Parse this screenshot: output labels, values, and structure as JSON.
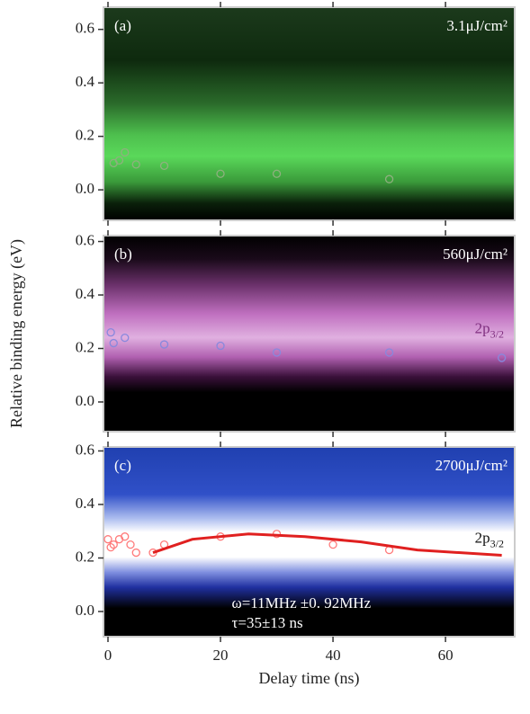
{
  "chart_data": [
    {
      "type": "scatter",
      "label": "(a)",
      "fluence": "3.1μJ/cm²",
      "xlim": [
        -0.8,
        72.3
      ],
      "xticks": [
        0,
        20,
        40,
        60
      ],
      "ylim": [
        -0.114,
        0.683
      ],
      "yticks": [
        {
          "value": 0,
          "label": "0.0"
        },
        0.2,
        0.4,
        0.6
      ],
      "series": [
        {
          "color": "#8fb07f",
          "x": [
            1,
            2,
            3,
            5,
            10,
            20,
            30,
            50
          ],
          "values": [
            0.1,
            0.11,
            0.14,
            0.095,
            0.09,
            0.06,
            0.06,
            0.04
          ]
        }
      ]
    },
    {
      "type": "scatter",
      "label": "(b)",
      "fluence": "560μJ/cm²",
      "state": {
        "text": "2p",
        "sub": "3/2"
      },
      "ylabel": "Relative binding energy (eV)",
      "xlim": [
        -0.8,
        72.3
      ],
      "xticks": [
        0,
        20,
        40,
        60
      ],
      "ylim": [
        -0.111,
        0.622
      ],
      "yticks": [
        {
          "value": 0,
          "label": "0.0"
        },
        0.2,
        0.4,
        0.6
      ],
      "series": [
        {
          "color": "#8888dd",
          "x": [
            0.5,
            1,
            3,
            10,
            20,
            30,
            50,
            70
          ],
          "values": [
            0.26,
            0.22,
            0.24,
            0.215,
            0.21,
            0.185,
            0.185,
            0.165
          ]
        }
      ]
    },
    {
      "type": "scatter",
      "label": "(c)",
      "fluence": "2700μJ/cm²",
      "state": {
        "text": "2p",
        "sub": "3/2"
      },
      "annotations": [
        "ω=11MHz ±0. 92MHz",
        "τ=35±13 ns"
      ],
      "xlabel": "Delay time (ns)",
      "xlim": [
        -0.8,
        72.3
      ],
      "xticks": [
        0,
        20,
        40,
        60
      ],
      "ylim": [
        -0.094,
        0.615
      ],
      "yticks": [
        {
          "value": 0,
          "label": "0.0"
        },
        0.2,
        0.4,
        0.6
      ],
      "series": [
        {
          "color": "#ff7a7a",
          "x": [
            0,
            0.5,
            1,
            2,
            3,
            4,
            5,
            8,
            10,
            20,
            30,
            40,
            50
          ],
          "values": [
            0.27,
            0.24,
            0.25,
            0.27,
            0.28,
            0.25,
            0.22,
            0.22,
            0.25,
            0.28,
            0.29,
            0.25,
            0.23
          ]
        },
        {
          "type": "line",
          "color": "#e02020",
          "x": [
            8,
            15,
            25,
            35,
            45,
            55,
            70
          ],
          "values": [
            0.22,
            0.27,
            0.29,
            0.28,
            0.26,
            0.23,
            0.21
          ]
        }
      ]
    }
  ]
}
